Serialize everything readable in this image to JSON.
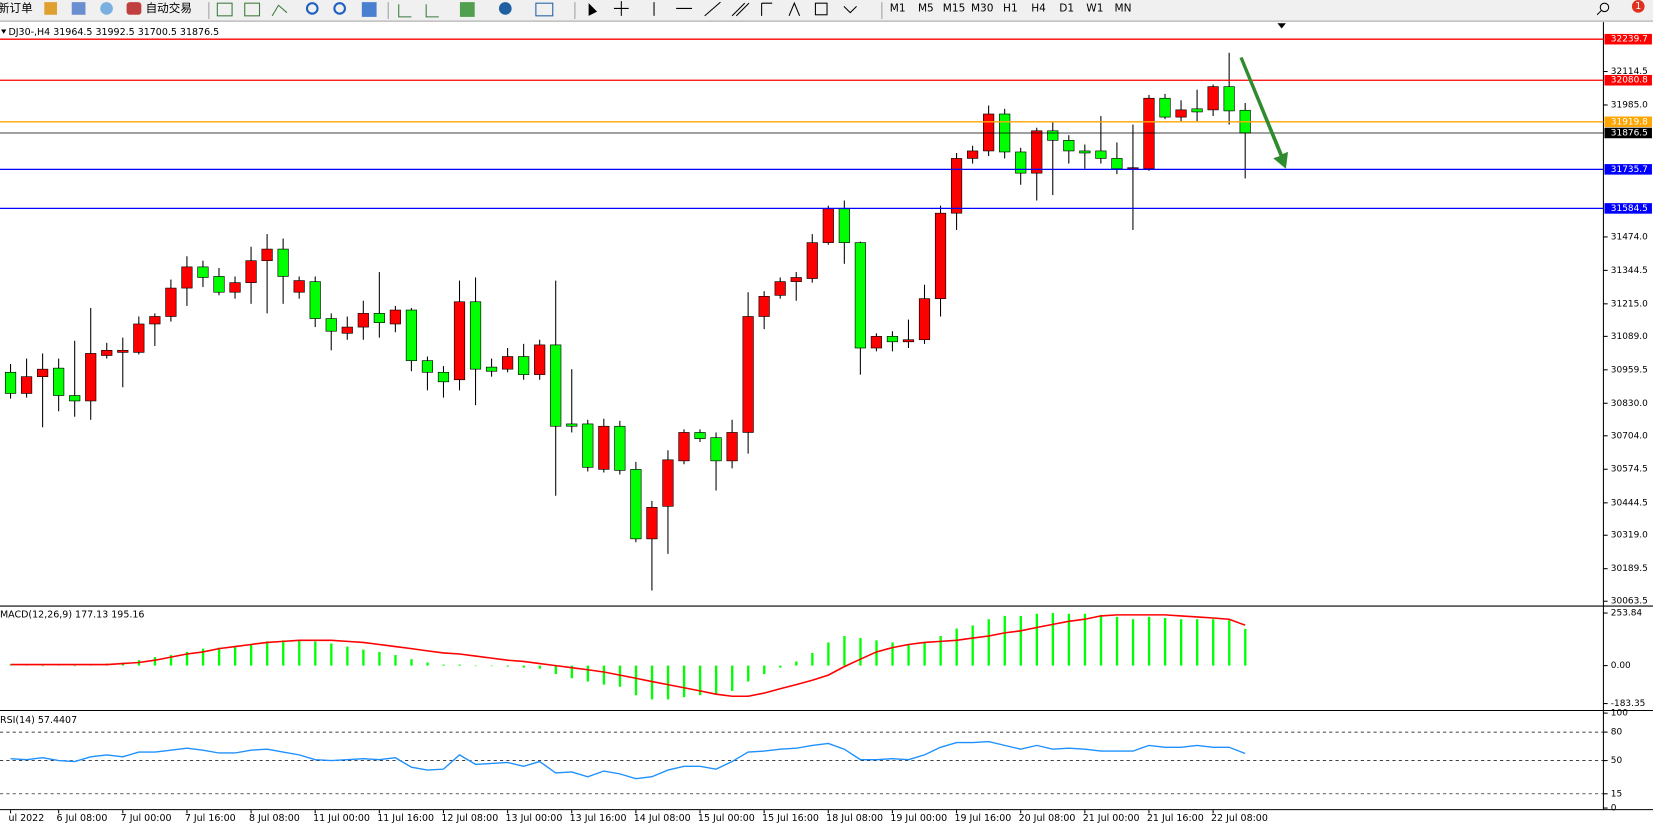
{
  "toolbar": {
    "buttons": [
      "新订单",
      "自动交易"
    ],
    "timeframes": [
      "M1",
      "M5",
      "M15",
      "M30",
      "H1",
      "H4",
      "D1",
      "W1",
      "MN"
    ],
    "badge": "1"
  },
  "chart_data": [
    {
      "type": "candlestick",
      "title": "DJ30-,H4  31964.5 31992.5 31700.5 31876.5",
      "categories": [
        "ul 2022",
        null,
        null,
        "6 Jul 08:00",
        null,
        null,
        null,
        "7 Jul 00:00",
        null,
        null,
        null,
        "7 Jul 16:00",
        null,
        null,
        null,
        "8 Jul 08:00",
        null,
        null,
        null,
        "11 Jul 00:00",
        null,
        null,
        null,
        "11 Jul 16:00",
        null,
        null,
        null,
        "12 Jul 08:00",
        null,
        null,
        null,
        "13 Jul 00:00",
        null,
        null,
        null,
        "13 Jul 16:00",
        null,
        null,
        null,
        "14 Jul 08:00",
        null,
        null,
        null,
        "15 Jul 00:00",
        null,
        null,
        null,
        "15 Jul 16:00",
        null,
        null,
        null,
        "18 Jul 08:00",
        null,
        null,
        null,
        "19 Jul 00:00",
        null,
        null,
        null,
        "19 Jul 16:00",
        null,
        null,
        null,
        "20 Jul 08:00",
        null,
        null,
        null,
        "21 Jul 00:00",
        null,
        null,
        null,
        "21 Jul 16:00",
        null,
        null,
        null,
        "22 Jul 08:00",
        null,
        null
      ],
      "open": [
        30950,
        30868,
        30933,
        30966,
        30860,
        30839,
        31015,
        31027,
        31027,
        31137,
        31166,
        31276,
        31358,
        31321,
        31260,
        31297,
        31382,
        31427,
        31260,
        31301,
        31158,
        31101,
        31125,
        31178,
        31137,
        31191,
        30995,
        30950,
        30921,
        31223,
        30970,
        30962,
        31011,
        30941,
        31056,
        30750,
        30750,
        30574,
        30741,
        30574,
        30305,
        30431,
        30607,
        30717,
        30697,
        30607,
        30717,
        31166,
        31248,
        31301,
        31313,
        31452,
        31583,
        31452,
        31044,
        31089,
        31068,
        31076,
        31235,
        31566,
        31778,
        31807,
        31950,
        31803,
        31721,
        31885,
        31848,
        31807,
        31807,
        31778,
        31738,
        31738,
        32011,
        31938,
        31970,
        31966,
        32056,
        31964.5
      ],
      "high": [
        30982,
        31003,
        31023,
        31003,
        31072,
        31199,
        31064,
        31084,
        31166,
        31178,
        31309,
        31399,
        31382,
        31354,
        31321,
        31436,
        31485,
        31468,
        31321,
        31321,
        31178,
        31166,
        31227,
        31338,
        31207,
        31199,
        31011,
        30974,
        31305,
        31317,
        31003,
        31044,
        31060,
        31076,
        31305,
        30962,
        30766,
        30770,
        30762,
        30603,
        30452,
        30648,
        30729,
        30729,
        30717,
        30766,
        31260,
        31264,
        31317,
        31338,
        31485,
        31595,
        31615,
        31456,
        31101,
        31109,
        31154,
        31289,
        31595,
        31799,
        31827,
        31983,
        31970,
        31819,
        31897,
        31917,
        31868,
        31832,
        31942,
        31840,
        31909,
        32024,
        32028,
        32003,
        32044,
        32064,
        32187,
        31992.5
      ],
      "low": [
        30848,
        30852,
        30737,
        30799,
        30778,
        30766,
        31003,
        30892,
        31019,
        31052,
        31146,
        31207,
        31280,
        31248,
        31235,
        31215,
        31178,
        31215,
        31235,
        31125,
        31035,
        31076,
        31076,
        31084,
        31105,
        30954,
        30880,
        30852,
        30880,
        30823,
        30933,
        30950,
        30921,
        30921,
        30472,
        30717,
        30566,
        30562,
        30554,
        30292,
        30105,
        30247,
        30594,
        30680,
        30492,
        30578,
        30635,
        31117,
        31235,
        31227,
        31297,
        31444,
        31370,
        30941,
        31031,
        31031,
        31044,
        31060,
        31166,
        31501,
        31758,
        31787,
        31778,
        31676,
        31615,
        31636,
        31758,
        31738,
        31758,
        31717,
        31501,
        31730,
        31930,
        31922,
        31922,
        31942,
        31909,
        31700.5
      ],
      "close": [
        30868,
        30933,
        30962,
        30860,
        30839,
        31023,
        31035,
        31035,
        31137,
        31166,
        31276,
        31358,
        31317,
        31260,
        31297,
        31382,
        31427,
        31321,
        31305,
        31158,
        31109,
        31125,
        31178,
        31142,
        31191,
        30995,
        30950,
        30913,
        31223,
        30962,
        30954,
        31011,
        30941,
        31056,
        30741,
        30741,
        30582,
        30741,
        30570,
        30305,
        30427,
        30611,
        30717,
        30693,
        30607,
        30717,
        31166,
        31244,
        31301,
        31317,
        31452,
        31583,
        31452,
        31044,
        31089,
        31068,
        31076,
        31235,
        31566,
        31778,
        31807,
        31950,
        31803,
        31721,
        31885,
        31848,
        31807,
        31799,
        31778,
        31738,
        31742,
        32011,
        31938,
        31966,
        31958,
        32056,
        31962,
        31876.5
      ],
      "up_color": "#ff0000",
      "down_color": "#00ff00",
      "ylim": [
        30051,
        32277
      ],
      "yticks": [
        32114.5,
        {
          "value": 31985,
          "label": "31985.0"
        },
        {
          "value": 31474,
          "label": "31474.0"
        },
        31344.5,
        {
          "value": 31215,
          "label": "31215.0"
        },
        {
          "value": 31089,
          "label": "31089.0"
        },
        30959.5,
        {
          "value": 30830,
          "label": "30830.0"
        },
        {
          "value": 30704,
          "label": "30704.0"
        },
        30574.5,
        30444.5,
        {
          "value": 30319,
          "label": "30319.0"
        },
        30189.5,
        30063.5
      ],
      "levels": [
        {
          "value": 32239.7,
          "color": "#ff0000"
        },
        {
          "value": 32080.8,
          "color": "#ff0000"
        },
        {
          "value": 31919.8,
          "color": "#ffa500"
        },
        {
          "value": 31876.5,
          "color": "#000000"
        },
        {
          "value": 31735.7,
          "color": "#0000ff"
        },
        {
          "value": 31584.5,
          "color": "#0000ff"
        }
      ]
    },
    {
      "type": "macd",
      "title": "MACD(12,26,9) 177.13 195.16",
      "histogram": {
        "color": "#00ff00",
        "values": [
          5,
          5,
          0,
          5,
          0,
          5,
          10,
          15,
          26,
          41,
          51,
          66,
          82,
          87,
          92,
          102,
          117,
          122,
          122,
          117,
          107,
          92,
          77,
          66,
          51,
          31,
          15,
          5,
          5,
          0,
          -2,
          -5,
          -10,
          -15,
          -41,
          -61,
          -77,
          -92,
          -102,
          -143,
          -163,
          -163,
          -153,
          -143,
          -138,
          -122,
          -77,
          -41,
          -10,
          20,
          61,
          112,
          143,
          133,
          122,
          112,
          102,
          112,
          143,
          179,
          194,
          224,
          240,
          240,
          250,
          253.84,
          250,
          250,
          245,
          235,
          224,
          235,
          230,
          224,
          224,
          224,
          219,
          177.13
        ]
      },
      "signal": {
        "color": "#ff0000",
        "values": [
          5,
          5,
          5,
          5,
          5,
          5,
          5,
          10,
          15,
          26,
          41,
          56,
          66,
          82,
          92,
          102,
          112,
          117,
          122,
          122,
          122,
          117,
          112,
          102,
          92,
          82,
          71,
          61,
          56,
          46,
          36,
          26,
          20,
          10,
          0,
          -10,
          -20,
          -31,
          -46,
          -61,
          -77,
          -92,
          -107,
          -122,
          -138,
          -148,
          -148,
          -133,
          -112,
          -92,
          -71,
          -46,
          -5,
          31,
          66,
          87,
          102,
          112,
          117,
          122,
          133,
          143,
          158,
          168,
          184,
          199,
          214,
          224,
          240,
          245,
          245,
          245,
          245,
          240,
          235,
          230,
          224,
          195.16
        ]
      },
      "ylim": [
        -204,
        280
      ],
      "yticks": [
        253.84,
        {
          "value": 0,
          "label": "0.00"
        },
        -183.35
      ]
    },
    {
      "type": "line",
      "title": "RSI(14) 57.4407",
      "color": "#1e90ff",
      "values": [
        52,
        51,
        53,
        50,
        49,
        54,
        56,
        54,
        59,
        59,
        61,
        63,
        61,
        58,
        58,
        61,
        62,
        59,
        56,
        51,
        50,
        51,
        52,
        51,
        53,
        43,
        40,
        41,
        56,
        46,
        47,
        48,
        44,
        49,
        37,
        38,
        33,
        39,
        36,
        31,
        33,
        40,
        44,
        44,
        41,
        49,
        59,
        60,
        62,
        63,
        66,
        68,
        62,
        51,
        51,
        52,
        51,
        56,
        64,
        69,
        69,
        70,
        66,
        62,
        66,
        62,
        63,
        62,
        60,
        60,
        60,
        66,
        64,
        64,
        66,
        64,
        64,
        57.4407
      ],
      "ylim": [
        0,
        100
      ],
      "yticks": [
        100,
        80,
        50,
        15,
        0
      ],
      "dashed_levels": [
        80,
        50,
        15
      ]
    }
  ]
}
